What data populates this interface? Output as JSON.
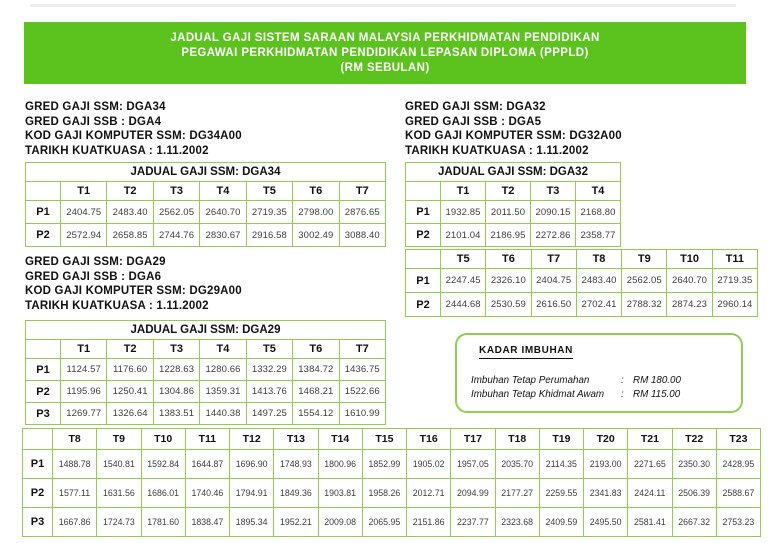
{
  "banner": {
    "lines": [
      "JADUAL GAJI SISTEM SARAAN MALAYSIA PERKHIDMATAN PENDIDIKAN",
      "PEGAWAI PERKHIDMATAN PENDIDIKAN LEPASAN DIPLOMA (PPPLD)",
      "(RM SEBULAN)"
    ]
  },
  "colors": {
    "banner_green": "#5cc21e",
    "table_border_green": "#94cb52",
    "text_black": "#111111",
    "value_gray": "#3d3d3d"
  },
  "sections": {
    "dga34": {
      "info": [
        "GRED GAJI SSM: DGA34",
        "GRED GAJI SSB : DGA4",
        "KOD GAJI KOMPUTER SSM: DG34A00",
        "TARIKH KUATKUASA : 1.11.2002"
      ],
      "table": {
        "title": "JADUAL GAJI SSM: DGA34",
        "headers": [
          "T1",
          "T2",
          "T3",
          "T4",
          "T5",
          "T6",
          "T7"
        ],
        "rows": [
          {
            "label": "P1",
            "values": [
              "2404.75",
              "2483.40",
              "2562.05",
              "2640.70",
              "2719.35",
              "2798.00",
              "2876.65"
            ]
          },
          {
            "label": "P2",
            "values": [
              "2572.94",
              "2658.85",
              "2744.76",
              "2830.67",
              "2916.58",
              "3002.49",
              "3088.40"
            ]
          }
        ]
      }
    },
    "dga32": {
      "info": [
        "GRED GAJI SSM: DGA32",
        "GRED GAJI SSB : DGA5",
        "KOD GAJI KOMPUTER SSM: DG32A00",
        "TARIKH KUATKUASA : 1.11.2002"
      ],
      "table": {
        "title": "JADUAL GAJI SSM: DGA32",
        "headers": [
          "T1",
          "T2",
          "T3",
          "T4"
        ],
        "rows": [
          {
            "label": "P1",
            "values": [
              "1932.85",
              "2011.50",
              "2090.15",
              "2168.80"
            ]
          },
          {
            "label": "P2",
            "values": [
              "2101.04",
              "2186.95",
              "2272.86",
              "2358.77"
            ]
          }
        ]
      },
      "table_cont": {
        "headers": [
          "T5",
          "T6",
          "T7",
          "T8",
          "T9",
          "T10",
          "T11"
        ],
        "rows": [
          {
            "label": "P1",
            "values": [
              "2247.45",
              "2326.10",
              "2404.75",
              "2483.40",
              "2562.05",
              "2640.70",
              "2719.35"
            ]
          },
          {
            "label": "P2",
            "values": [
              "2444.68",
              "2530.59",
              "2616.50",
              "2702.41",
              "2788.32",
              "2874.23",
              "2960.14"
            ]
          }
        ]
      }
    },
    "dga29": {
      "info": [
        "GRED GAJI SSM: DGA29",
        "GRED GAJI SSB : DGA6",
        "KOD GAJI KOMPUTER SSM: DG29A00",
        "TARIKH KUATKUASA : 1.11.2002"
      ],
      "table": {
        "title": "JADUAL GAJI SSM: DGA29",
        "headers": [
          "T1",
          "T2",
          "T3",
          "T4",
          "T5",
          "T6",
          "T7"
        ],
        "rows": [
          {
            "label": "P1",
            "values": [
              "1124.57",
              "1176.60",
              "1228.63",
              "1280.66",
              "1332.29",
              "1384.72",
              "1436.75"
            ]
          },
          {
            "label": "P2",
            "values": [
              "1195.96",
              "1250.41",
              "1304.86",
              "1359.31",
              "1413.76",
              "1468.21",
              "1522.66"
            ]
          },
          {
            "label": "P3",
            "values": [
              "1269.77",
              "1326.64",
              "1383.51",
              "1440.38",
              "1497.25",
              "1554.12",
              "1610.99"
            ]
          }
        ]
      },
      "table_cont": {
        "headers": [
          "T8",
          "T9",
          "T10",
          "T11",
          "T12",
          "T13",
          "T14",
          "T15",
          "T16",
          "T17",
          "T18",
          "T19",
          "T20",
          "T21",
          "T22",
          "T23"
        ],
        "rows": [
          {
            "label": "P1",
            "values": [
              "1488.78",
              "1540.81",
              "1592.84",
              "1644.87",
              "1696.90",
              "1748.93",
              "1800.96",
              "1852.99",
              "1905.02",
              "1957.05",
              "2035.70",
              "2114.35",
              "2193.00",
              "2271.65",
              "2350.30",
              "2428.95"
            ]
          },
          {
            "label": "P2",
            "values": [
              "1577.11",
              "1631.56",
              "1686.01",
              "1740.46",
              "1794.91",
              "1849.36",
              "1903.81",
              "1958.26",
              "2012.71",
              "2094.99",
              "2177.27",
              "2259.55",
              "2341.83",
              "2424.11",
              "2506.39",
              "2588.67"
            ]
          },
          {
            "label": "P3",
            "values": [
              "1667.86",
              "1724.73",
              "1781.60",
              "1838.47",
              "1895.34",
              "1952.21",
              "2009.08",
              "2065.95",
              "2151.86",
              "2237.77",
              "2323.68",
              "2409.59",
              "2495.50",
              "2581.41",
              "2667.32",
              "2753.23"
            ]
          }
        ]
      }
    },
    "kadar_imbuhan": {
      "title": "KADAR IMBUHAN",
      "items": [
        {
          "label": "Imbuhan Tetap Perumahan",
          "colon": ":",
          "value": "RM 180.00"
        },
        {
          "label": "Imbuhan Tetap Khidmat Awam",
          "colon": ":",
          "value": "RM 115.00"
        }
      ]
    }
  }
}
